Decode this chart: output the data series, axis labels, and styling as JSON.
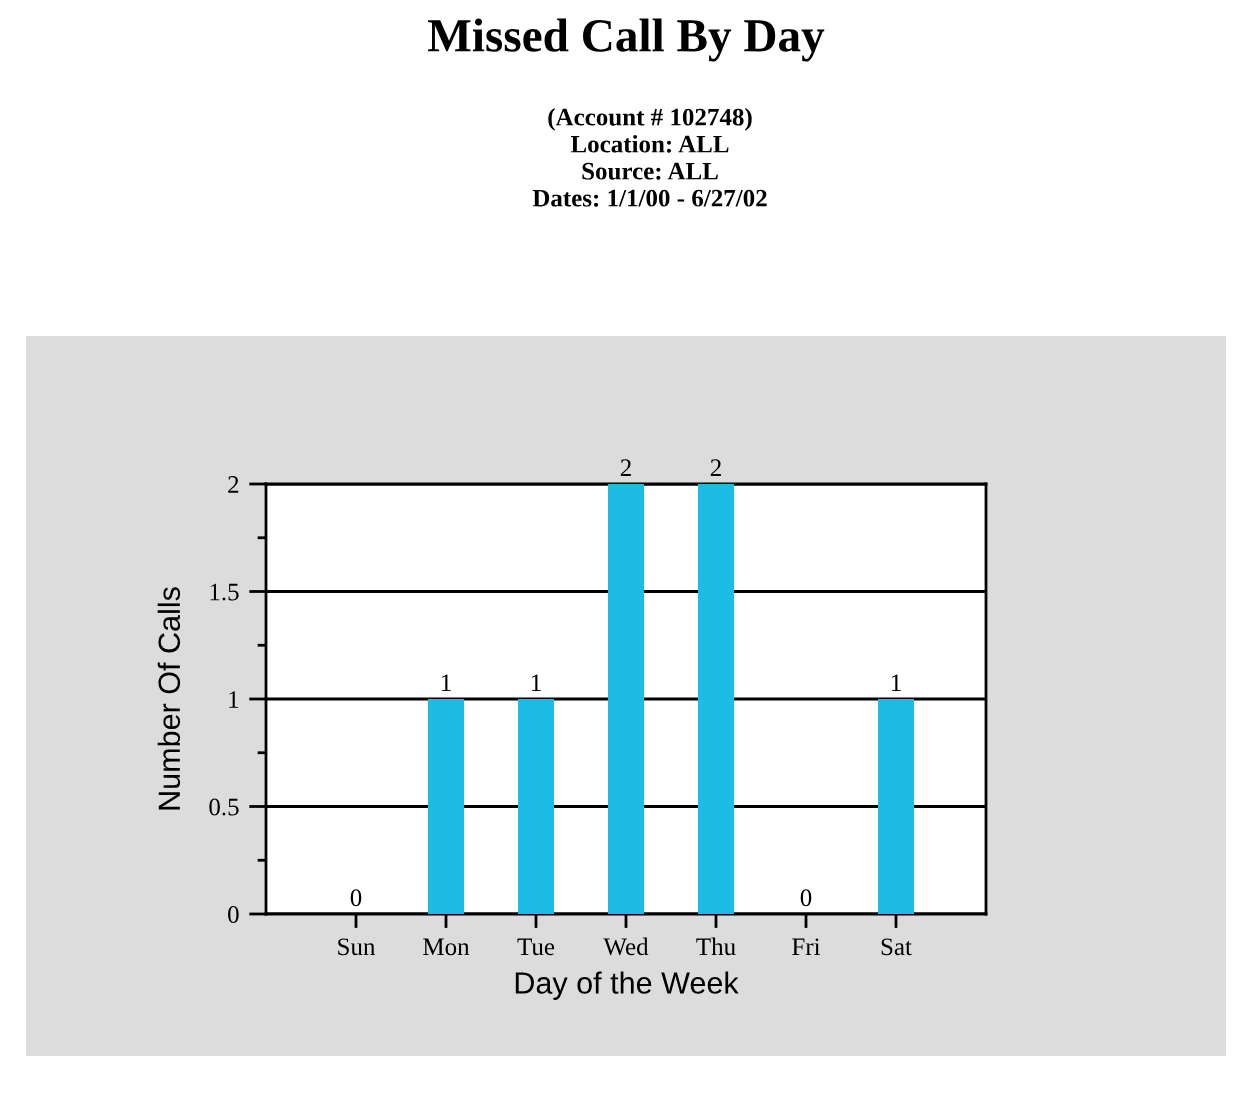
{
  "chart_data": {
    "type": "bar",
    "title": "Missed Call By Day",
    "subtitle": "(Account # 102748)\nLocation: ALL\nSource: ALL\nDates: 1/1/00 - 6/27/02",
    "xlabel": "Day of the Week",
    "ylabel": "Number Of Calls",
    "categories": [
      "Sun",
      "Mon",
      "Tue",
      "Wed",
      "Thu",
      "Fri",
      "Sat"
    ],
    "values": [
      0,
      1,
      1,
      2,
      2,
      0,
      1
    ],
    "color": "#1dbce4",
    "ylim": [
      0,
      2
    ],
    "yticks": [
      0,
      {
        "value": 0.25,
        "label": null
      },
      0.5,
      {
        "value": 0.75,
        "label": null
      },
      1,
      {
        "value": 1.25,
        "label": null
      },
      1.5,
      {
        "value": 1.75,
        "label": null
      },
      2
    ],
    "grid": "y",
    "data_labels": true
  }
}
